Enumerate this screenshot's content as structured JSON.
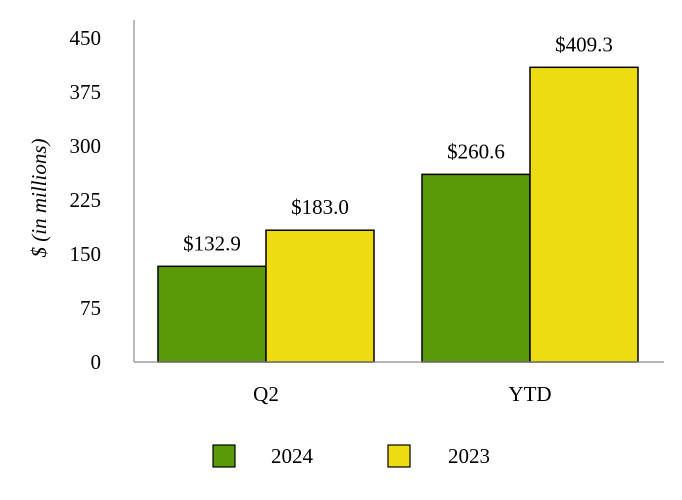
{
  "chart_data": {
    "type": "bar",
    "title": "",
    "xlabel": "",
    "ylabel": "$ (in millions)",
    "categories": [
      "Q2",
      "YTD"
    ],
    "series": [
      {
        "name": "2024",
        "color": "#5a9a08",
        "values": [
          132.9,
          260.6
        ],
        "data_labels": [
          "$132.9",
          "$260.6"
        ]
      },
      {
        "name": "2023",
        "color": "#eddc12",
        "values": [
          183.0,
          409.3
        ],
        "data_labels": [
          "$183.0",
          "$409.3"
        ]
      }
    ],
    "ylim": [
      0,
      450
    ],
    "yticks": [
      0,
      75,
      150,
      225,
      300,
      375,
      450
    ],
    "grid": false,
    "legend_position": "bottom"
  }
}
